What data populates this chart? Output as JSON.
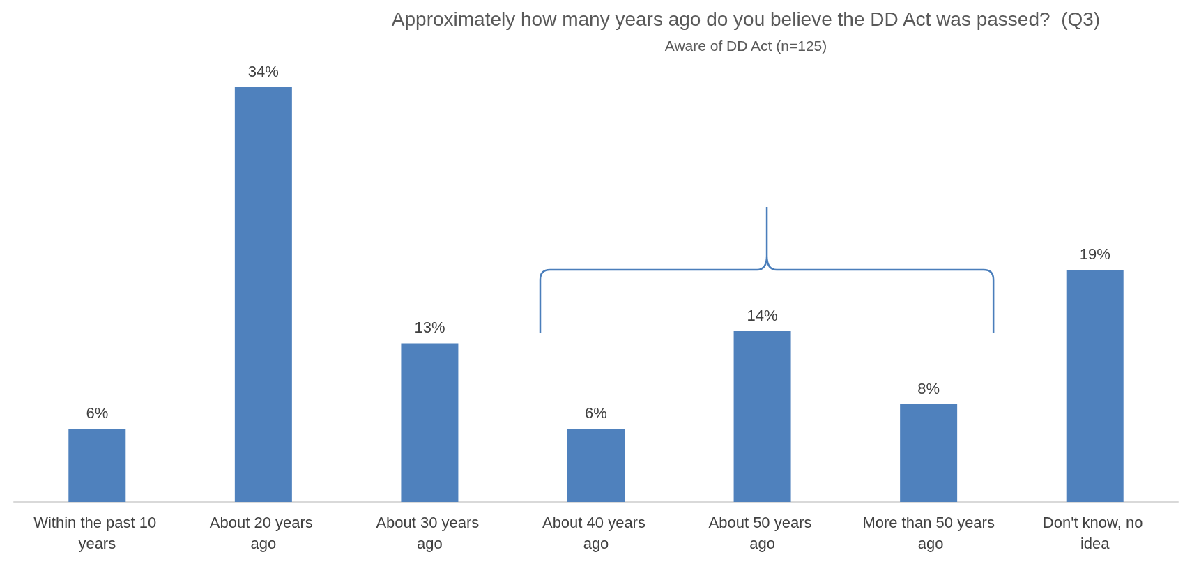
{
  "chart_data": {
    "type": "bar",
    "title": "Approximately how many years ago do you believe the DD Act was passed?  (Q3)",
    "subtitle": "Aware of DD Act (n=125)",
    "categories": [
      "Within the past 10 years",
      "About 20 years ago",
      "About 30 years ago",
      "About 40 years ago",
      "About 50 years ago",
      "More than 50 years ago",
      "Don't know, no idea"
    ],
    "values": [
      6,
      34,
      13,
      6,
      14,
      8,
      19
    ],
    "value_labels": [
      "6%",
      "34%",
      "13%",
      "6%",
      "14%",
      "8%",
      "19%"
    ],
    "color": "#4f81bd"
  }
}
